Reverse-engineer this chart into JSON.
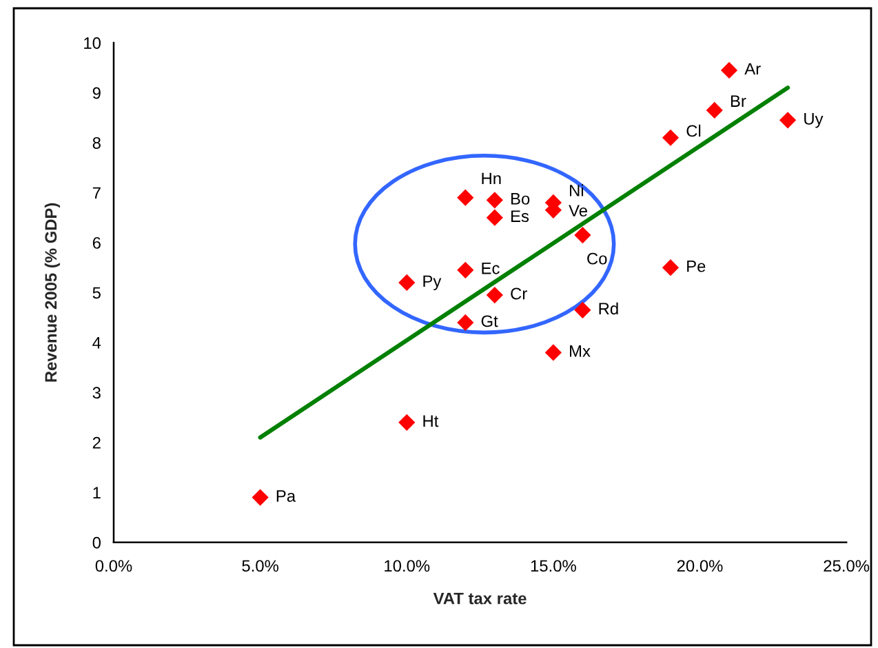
{
  "chart_data": {
    "type": "scatter",
    "xlabel": "VAT tax rate",
    "ylabel": "Revenue 2005 (% GDP)",
    "xlim": [
      0,
      25
    ],
    "xticks": [
      {
        "value": 0,
        "label": "0.0%"
      },
      {
        "value": 5,
        "label": "5.0%"
      },
      {
        "value": 10,
        "label": "10.0%"
      },
      {
        "value": 15,
        "label": "15.0%"
      },
      {
        "value": 20,
        "label": "20.0%"
      },
      {
        "value": 25,
        "label": "25.0%"
      }
    ],
    "ylim": [
      0,
      10
    ],
    "yticks": [
      0,
      1,
      2,
      3,
      4,
      5,
      6,
      7,
      8,
      9,
      10
    ],
    "series": [
      {
        "color": "#ff0000",
        "marker": "diamond",
        "x": [
          5,
          10,
          10,
          12,
          12,
          12,
          13,
          13,
          13,
          15,
          15,
          15,
          16,
          16,
          19,
          19,
          20.5,
          21,
          23
        ],
        "values": [
          0.9,
          2.4,
          5.2,
          6.9,
          5.45,
          4.4,
          6.85,
          6.5,
          4.95,
          6.8,
          6.65,
          3.8,
          6.15,
          4.65,
          5.5,
          8.1,
          8.65,
          9.45,
          8.45
        ]
      },
      {
        "type": "line",
        "color": "#008000",
        "line_style": "solid",
        "x": [
          5,
          23
        ],
        "values": [
          2.1,
          9.1
        ]
      }
    ],
    "annotations": [
      {
        "text": "Pa",
        "x": 5,
        "y": 0.9
      },
      {
        "text": "Ht",
        "x": 10,
        "y": 2.4
      },
      {
        "text": "Py",
        "x": 10,
        "y": 5.2
      },
      {
        "text": "Hn",
        "x": 12,
        "y": 6.9
      },
      {
        "text": "Ec",
        "x": 12,
        "y": 5.45
      },
      {
        "text": "Gt",
        "x": 12,
        "y": 4.4
      },
      {
        "text": "Bo",
        "x": 13,
        "y": 6.85
      },
      {
        "text": "Es",
        "x": 13,
        "y": 6.5
      },
      {
        "text": "Cr",
        "x": 13,
        "y": 4.95
      },
      {
        "text": "Ni",
        "x": 15,
        "y": 6.8
      },
      {
        "text": "Ve",
        "x": 15,
        "y": 6.65
      },
      {
        "text": "Mx",
        "x": 15,
        "y": 3.8
      },
      {
        "text": "Co",
        "x": 16,
        "y": 6.15
      },
      {
        "text": "Rd",
        "x": 16,
        "y": 4.65
      },
      {
        "text": "Pe",
        "x": 19,
        "y": 5.5
      },
      {
        "text": "Cl",
        "x": 19,
        "y": 8.1
      },
      {
        "text": "Br",
        "x": 20.5,
        "y": 8.65
      },
      {
        "text": "Ar",
        "x": 21,
        "y": 9.45
      },
      {
        "text": "Uy",
        "x": 23,
        "y": 8.45
      }
    ]
  }
}
